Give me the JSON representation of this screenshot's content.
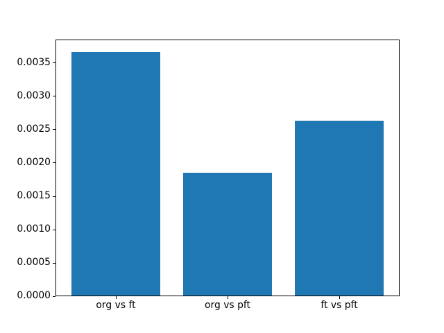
{
  "figure": {
    "background": "#ffffff",
    "spine_color": "#000000",
    "tick_color": "#000000",
    "text_color": "#000000"
  },
  "chart_data": {
    "type": "bar",
    "title": "",
    "xlabel": "",
    "ylabel": "",
    "categories": [
      "org vs ft",
      "org vs pft",
      "ft vs pft"
    ],
    "values": [
      0.00367,
      0.00185,
      0.00264
    ],
    "bar_color": "#1f77b4",
    "bar_width": 0.8,
    "ylim": [
      0,
      0.003853
    ],
    "yticks": [
      0.0,
      0.0005,
      0.001,
      0.0015,
      0.002,
      0.0025,
      0.003,
      0.0035
    ],
    "ytick_labels": [
      "0.0000",
      "0.0005",
      "0.0010",
      "0.0015",
      "0.0020",
      "0.0025",
      "0.0030",
      "0.0035"
    ],
    "grid": false,
    "legend": null
  }
}
